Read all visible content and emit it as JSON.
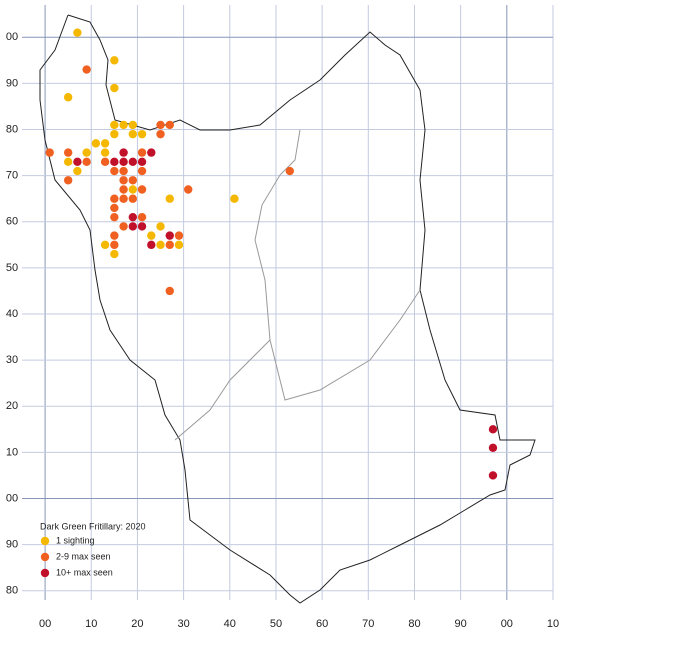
{
  "chart_data": {
    "type": "scatter",
    "title": "Dark Green Fritillary:  2020",
    "xlim": [
      -5,
      110
    ],
    "ylim": [
      78,
      207
    ],
    "xticks": [
      {
        "value": 0,
        "label": "00"
      },
      10,
      20,
      30,
      40,
      50,
      60,
      70,
      80,
      90,
      {
        "value": 100,
        "label": "00"
      },
      {
        "value": 110,
        "label": "10"
      }
    ],
    "yticks": [
      80,
      90,
      {
        "value": 100,
        "label": "00"
      },
      {
        "value": 110,
        "label": "10"
      },
      {
        "value": 120,
        "label": "20"
      },
      {
        "value": 130,
        "label": "30"
      },
      {
        "value": 140,
        "label": "40"
      },
      {
        "value": 150,
        "label": "50"
      },
      {
        "value": 160,
        "label": "60"
      },
      {
        "value": 170,
        "label": "70"
      },
      {
        "value": 180,
        "label": "80"
      },
      {
        "value": 190,
        "label": "90"
      },
      {
        "value": 200,
        "label": "00"
      }
    ],
    "grid": true,
    "series": [
      {
        "name": "1 sighting",
        "color": "#f5b800",
        "x": [
          7,
          15,
          5,
          15,
          15,
          17,
          19,
          15,
          19,
          21,
          11,
          13,
          9,
          13,
          5,
          7,
          19,
          27,
          41,
          25,
          23,
          13,
          25,
          29,
          15
        ],
        "values": [
          201,
          195,
          187,
          189,
          181,
          181,
          181,
          179,
          179,
          179,
          177,
          177,
          175,
          175,
          173,
          171,
          167,
          165,
          165,
          159,
          157,
          155,
          155,
          155,
          153
        ]
      },
      {
        "name": "2-9 max seen",
        "color": "#f06020",
        "x": [
          9,
          25,
          27,
          25,
          1,
          5,
          21,
          9,
          13,
          15,
          21,
          17,
          53,
          5,
          17,
          19,
          17,
          21,
          31,
          15,
          17,
          19,
          15,
          15,
          21,
          17,
          15,
          29,
          15,
          27,
          27
        ],
        "values": [
          193,
          181,
          181,
          179,
          175,
          175,
          175,
          173,
          173,
          171,
          171,
          171,
          171,
          169,
          169,
          169,
          167,
          167,
          167,
          165,
          165,
          165,
          163,
          161,
          161,
          159,
          157,
          157,
          155,
          155,
          145
        ]
      },
      {
        "name": "10+ max seen",
        "color": "#c0102a",
        "x": [
          7,
          15,
          17,
          19,
          21,
          17,
          23,
          19,
          19,
          21,
          23,
          27,
          97,
          97,
          97
        ],
        "values": [
          173,
          173,
          173,
          173,
          173,
          175,
          175,
          161,
          159,
          159,
          155,
          157,
          115,
          111,
          105
        ]
      }
    ]
  }
}
